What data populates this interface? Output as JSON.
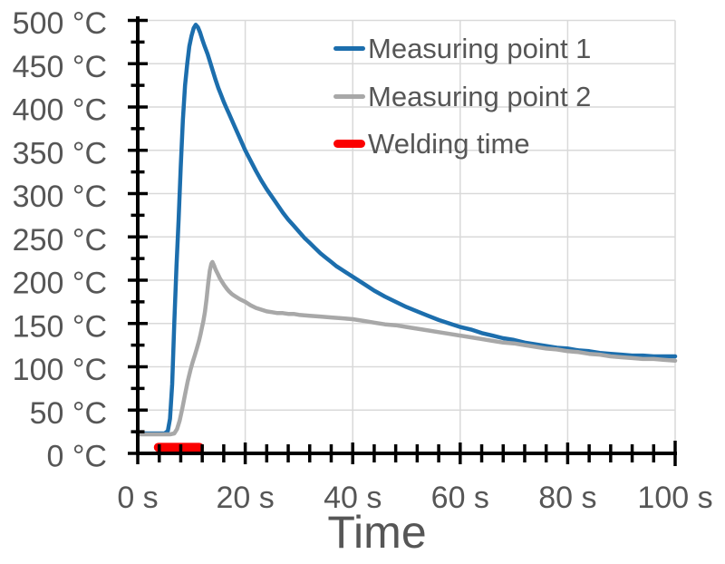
{
  "chart_data": {
    "type": "line",
    "title": "",
    "xlabel": "Time",
    "ylabel": "",
    "x_unit": "s",
    "y_unit": "°C",
    "xlim": [
      0,
      100
    ],
    "ylim": [
      0,
      500
    ],
    "grid": true,
    "x_major_tick_step": 20,
    "x_minor_tick_step": 4,
    "y_major_tick_step": 50,
    "y_minor_tick_step": 25,
    "x_tick_labels": [
      "0 s",
      "20 s",
      "40 s",
      "60 s",
      "80 s",
      "100 s"
    ],
    "y_tick_labels": [
      "0 °C",
      "50 °C",
      "100 °C",
      "150 °C",
      "200 °C",
      "250 °C",
      "300 °C",
      "350 °C",
      "400 °C",
      "450 °C",
      "500 °C"
    ],
    "grid_color": "#d9d9d9",
    "axis_color": "#000000",
    "label_color": "#565656",
    "legend_position": "top-right",
    "series": [
      {
        "name": "Measuring point 1",
        "color": "#1c6ead",
        "width": 4.5,
        "points": [
          [
            0,
            23
          ],
          [
            2,
            23
          ],
          [
            4,
            23
          ],
          [
            5,
            23
          ],
          [
            5.6,
            26
          ],
          [
            6,
            40
          ],
          [
            6.4,
            80
          ],
          [
            6.8,
            150
          ],
          [
            7.2,
            215
          ],
          [
            7.6,
            270
          ],
          [
            8,
            330
          ],
          [
            8.4,
            385
          ],
          [
            8.8,
            425
          ],
          [
            9.2,
            450
          ],
          [
            9.6,
            470
          ],
          [
            10,
            482
          ],
          [
            10.4,
            491
          ],
          [
            10.8,
            495
          ],
          [
            11.2,
            492
          ],
          [
            11.6,
            486
          ],
          [
            12,
            478
          ],
          [
            12.4,
            471
          ],
          [
            13,
            461
          ],
          [
            13.5,
            451
          ],
          [
            14,
            441
          ],
          [
            14.5,
            431
          ],
          [
            15,
            422
          ],
          [
            15.5,
            414
          ],
          [
            16,
            406
          ],
          [
            16.5,
            399
          ],
          [
            17,
            392
          ],
          [
            18,
            378
          ],
          [
            19,
            364
          ],
          [
            20,
            350
          ],
          [
            21,
            338
          ],
          [
            22,
            326
          ],
          [
            23,
            315
          ],
          [
            24,
            305
          ],
          [
            25,
            296
          ],
          [
            26,
            287
          ],
          [
            27,
            278
          ],
          [
            28,
            270
          ],
          [
            29,
            263
          ],
          [
            30,
            256
          ],
          [
            31,
            249
          ],
          [
            32,
            243
          ],
          [
            33,
            237
          ],
          [
            34,
            231
          ],
          [
            35,
            226
          ],
          [
            36,
            221
          ],
          [
            37,
            216
          ],
          [
            38,
            212
          ],
          [
            39,
            208
          ],
          [
            40,
            204
          ],
          [
            42,
            196
          ],
          [
            44,
            188
          ],
          [
            46,
            181
          ],
          [
            48,
            175
          ],
          [
            50,
            169
          ],
          [
            52,
            164
          ],
          [
            54,
            159
          ],
          [
            56,
            154
          ],
          [
            58,
            150
          ],
          [
            60,
            146
          ],
          [
            62,
            143
          ],
          [
            64,
            139
          ],
          [
            66,
            136
          ],
          [
            68,
            133
          ],
          [
            70,
            131
          ],
          [
            72,
            128
          ],
          [
            74,
            126
          ],
          [
            76,
            124
          ],
          [
            78,
            122
          ],
          [
            80,
            121
          ],
          [
            82,
            119
          ],
          [
            84,
            118
          ],
          [
            86,
            116
          ],
          [
            88,
            115
          ],
          [
            90,
            114
          ],
          [
            92,
            113
          ],
          [
            94,
            113
          ],
          [
            96,
            112
          ],
          [
            98,
            112
          ],
          [
            100,
            112
          ]
        ]
      },
      {
        "name": "Measuring point 2",
        "color": "#a8a8a8",
        "width": 4.5,
        "points": [
          [
            0,
            22
          ],
          [
            2,
            22
          ],
          [
            4,
            22
          ],
          [
            6,
            22
          ],
          [
            6.8,
            23
          ],
          [
            7.3,
            28
          ],
          [
            7.8,
            38
          ],
          [
            8.3,
            52
          ],
          [
            8.8,
            68
          ],
          [
            9.3,
            83
          ],
          [
            9.8,
            96
          ],
          [
            10.2,
            105
          ],
          [
            10.6,
            113
          ],
          [
            11,
            121
          ],
          [
            11.4,
            130
          ],
          [
            11.7,
            138
          ],
          [
            12,
            147
          ],
          [
            12.2,
            152
          ],
          [
            12.5,
            163
          ],
          [
            12.8,
            178
          ],
          [
            13.1,
            196
          ],
          [
            13.4,
            211
          ],
          [
            13.7,
            219
          ],
          [
            13.9,
            221
          ],
          [
            14.2,
            217
          ],
          [
            14.5,
            212
          ],
          [
            14.9,
            207
          ],
          [
            15.3,
            202
          ],
          [
            15.7,
            198
          ],
          [
            16.1,
            194
          ],
          [
            16.6,
            190
          ],
          [
            17,
            187
          ],
          [
            17.5,
            184
          ],
          [
            18,
            182
          ],
          [
            19,
            178
          ],
          [
            20,
            175
          ],
          [
            21,
            171
          ],
          [
            22,
            168
          ],
          [
            23,
            166
          ],
          [
            24,
            164
          ],
          [
            25,
            163
          ],
          [
            26,
            162
          ],
          [
            27,
            162
          ],
          [
            28,
            161
          ],
          [
            29,
            161
          ],
          [
            30,
            160
          ],
          [
            32,
            159
          ],
          [
            34,
            158
          ],
          [
            36,
            157
          ],
          [
            38,
            156
          ],
          [
            40,
            155
          ],
          [
            42,
            153
          ],
          [
            44,
            151
          ],
          [
            46,
            149
          ],
          [
            48,
            148
          ],
          [
            50,
            146
          ],
          [
            52,
            144
          ],
          [
            54,
            142
          ],
          [
            56,
            140
          ],
          [
            58,
            138
          ],
          [
            60,
            136
          ],
          [
            62,
            134
          ],
          [
            64,
            132
          ],
          [
            66,
            130
          ],
          [
            68,
            128
          ],
          [
            70,
            127
          ],
          [
            72,
            125
          ],
          [
            74,
            123
          ],
          [
            76,
            121
          ],
          [
            78,
            120
          ],
          [
            80,
            118
          ],
          [
            82,
            117
          ],
          [
            84,
            115
          ],
          [
            86,
            114
          ],
          [
            88,
            112
          ],
          [
            90,
            111
          ],
          [
            92,
            110
          ],
          [
            94,
            109
          ],
          [
            96,
            109
          ],
          [
            98,
            108
          ],
          [
            100,
            107
          ]
        ]
      }
    ],
    "welding_time": {
      "name": "Welding time",
      "color": "#fb0000",
      "start_s": 3,
      "end_s": 12.3,
      "temp_c": 7,
      "bar_thickness": 10
    }
  },
  "legend": {
    "items": [
      {
        "label": "Measuring point 1",
        "color": "#1c6ead",
        "swatch": "line"
      },
      {
        "label": "Measuring point 2",
        "color": "#a8a8a8",
        "swatch": "line"
      },
      {
        "label": "Welding time",
        "color": "#fb0000",
        "swatch": "thick-line"
      }
    ]
  }
}
